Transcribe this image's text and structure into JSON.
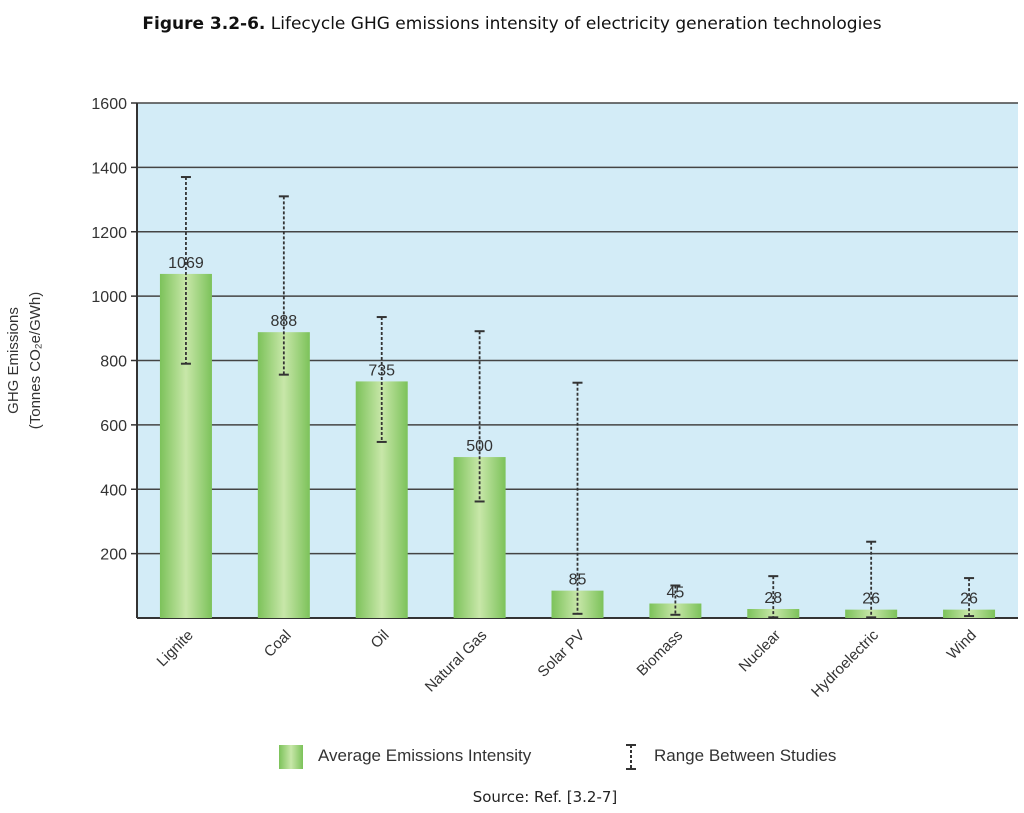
{
  "figure": {
    "label": "Figure 3.2-6.",
    "caption": "Lifecycle GHG emissions intensity of electricity generation technologies",
    "source": "Source: Ref. [3.2-7]"
  },
  "chart_data": {
    "type": "bar",
    "title": "",
    "ylabel_line1": "GHG Emissions",
    "ylabel_line2": "(Tonnes CO₂e/GWh)",
    "ylim": [
      0,
      1600
    ],
    "yticks": [
      200,
      400,
      600,
      800,
      1000,
      1200,
      1400,
      1600
    ],
    "categories": [
      "Lignite",
      "Coal",
      "Oil",
      "Natural Gas",
      "Solar PV",
      "Biomass",
      "Nuclear",
      "Hydroelectric",
      "Wind"
    ],
    "series": [
      {
        "name": "Average Emissions Intensity",
        "values": [
          1069,
          888,
          735,
          500,
          85,
          45,
          28,
          26,
          26
        ],
        "labels": [
          "1069",
          "888",
          "735",
          "500",
          "85",
          "45",
          "28",
          "26",
          "26"
        ]
      }
    ],
    "range_name": "Range Between Studies",
    "ranges": [
      [
        790,
        1370
      ],
      [
        756,
        1310
      ],
      [
        547,
        935
      ],
      [
        362,
        891
      ],
      [
        13,
        731
      ],
      [
        10,
        101
      ],
      [
        2,
        130
      ],
      [
        2,
        237
      ],
      [
        6,
        124
      ]
    ],
    "grid": true,
    "legend_position": "bottom",
    "colors": {
      "plot_background": "#d3ecf7",
      "bar": "#7cc25a",
      "bar_highlight": "#c8e7a9",
      "grid": "#444444"
    }
  }
}
